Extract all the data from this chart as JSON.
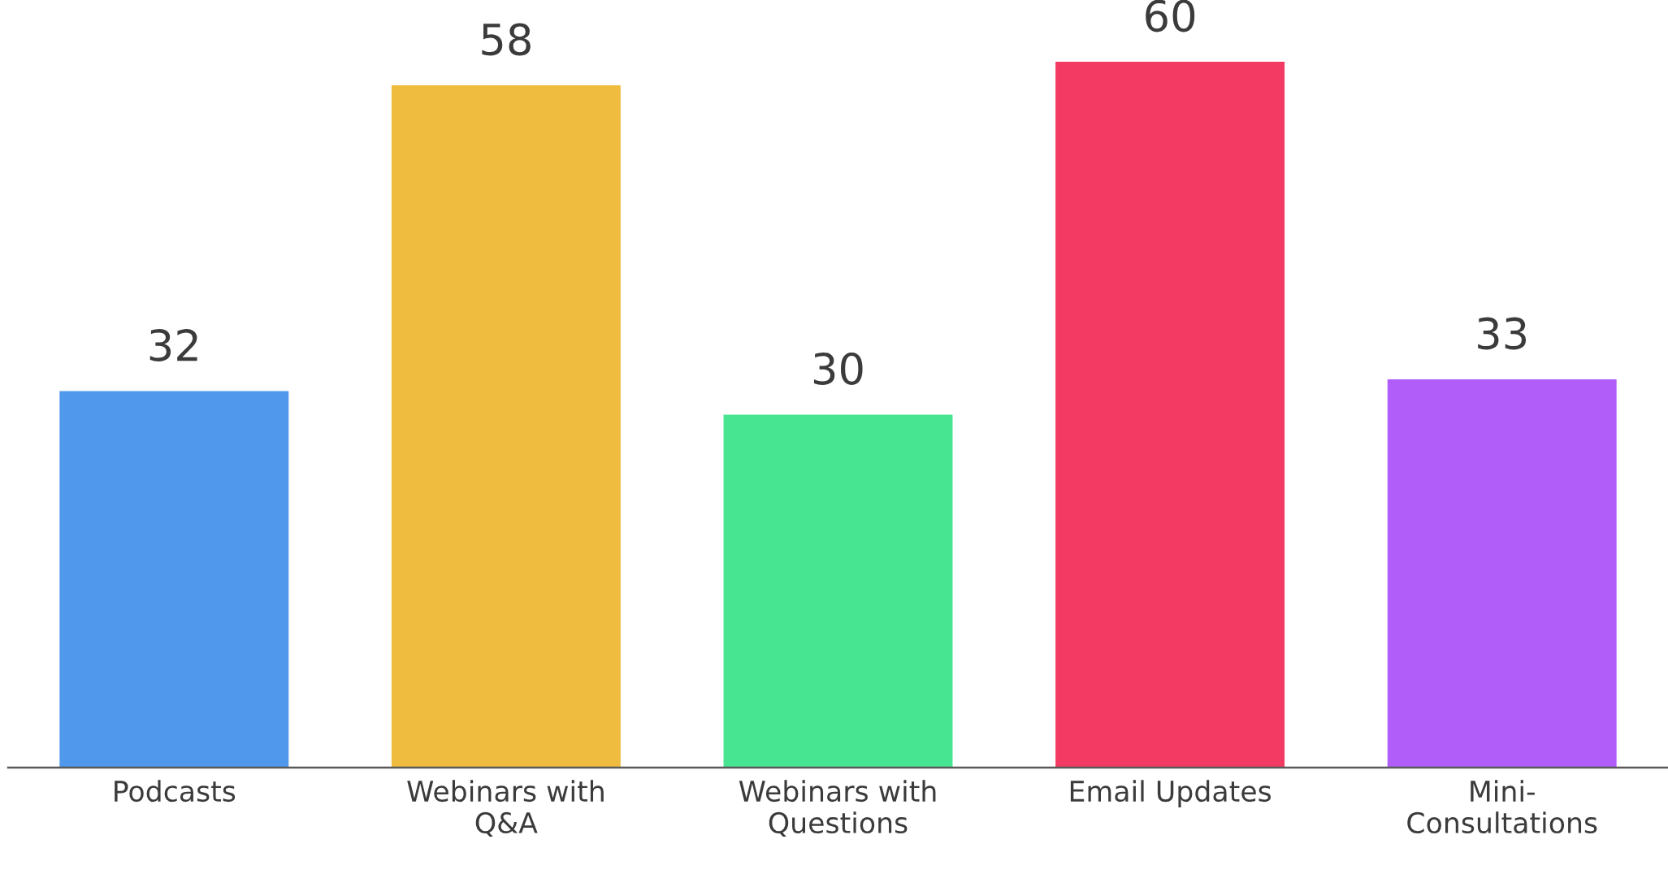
{
  "chart_data": {
    "type": "bar",
    "categories": [
      "Podcasts",
      "Webinars with Q&A",
      "Webinars with Questions",
      "Email Updates",
      "Mini-Consultations"
    ],
    "values": [
      32,
      58,
      30,
      60,
      33
    ],
    "colors": [
      "#4f98ec",
      "#efbc40",
      "#47e592",
      "#f23a63",
      "#b15df9"
    ],
    "data_labels": true
  }
}
